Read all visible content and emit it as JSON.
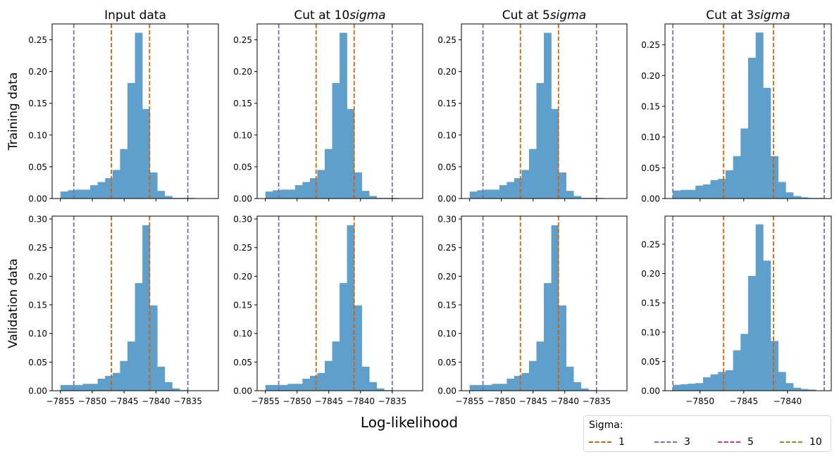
{
  "chart_data": {
    "type": "bar",
    "subtype": "histogram-grid",
    "xlabel": "Log-likelihood",
    "row_labels": [
      "Training data",
      "Validation data"
    ],
    "column_titles": [
      {
        "prefix": "Input data",
        "italic": ""
      },
      {
        "prefix": "Cut at 10",
        "italic": "sigma"
      },
      {
        "prefix": "Cut at 5",
        "italic": "sigma"
      },
      {
        "prefix": "Cut at 3",
        "italic": "sigma"
      }
    ],
    "bar_color": "#5f9fcc",
    "sigma_colors": {
      "1": "#d95f02",
      "3": "#7570b3",
      "5": "#e7298a",
      "10": "#66a61e"
    },
    "legend": {
      "title": "Sigma:",
      "placement": "bottom-right",
      "items": [
        {
          "label": "1",
          "color": "#d95f02"
        },
        {
          "label": "3",
          "color": "#7570b3"
        },
        {
          "label": "5",
          "color": "#e7298a"
        },
        {
          "label": "10",
          "color": "#66a61e"
        }
      ]
    },
    "panels": [
      {
        "row": 0,
        "col": 0,
        "xlim": [
          -7856.3,
          -7830.2
        ],
        "ylim": [
          0,
          0.275
        ],
        "xticks": [
          -7855,
          -7850,
          -7845,
          -7840,
          -7835
        ],
        "show_xticklabels": false,
        "yticks": [
          "0.00",
          "0.05",
          "0.10",
          "0.15",
          "0.20",
          "0.25"
        ],
        "bin_start": -7855.0,
        "bin_width": 1.17,
        "values": [
          0.011,
          0.013,
          0.014,
          0.014,
          0.021,
          0.026,
          0.032,
          0.045,
          0.078,
          0.182,
          0.261,
          0.141,
          0.041,
          0.012,
          0.004,
          0.001,
          0.001,
          0.001
        ],
        "vlines": [
          {
            "x": -7847.0,
            "sigma": "1"
          },
          {
            "x": -7841.0,
            "sigma": "1"
          },
          {
            "x": -7852.9,
            "sigma": "3"
          },
          {
            "x": -7835.0,
            "sigma": "3"
          }
        ]
      },
      {
        "row": 0,
        "col": 1,
        "xlim": [
          -7856.3,
          -7830.2
        ],
        "ylim": [
          0,
          0.275
        ],
        "xticks": [
          -7855,
          -7850,
          -7845,
          -7840,
          -7835
        ],
        "show_xticklabels": false,
        "yticks": [
          "0.00",
          "0.05",
          "0.10",
          "0.15",
          "0.20",
          "0.25"
        ],
        "bin_start": -7855.0,
        "bin_width": 1.17,
        "values": [
          0.011,
          0.013,
          0.014,
          0.014,
          0.021,
          0.026,
          0.032,
          0.045,
          0.078,
          0.182,
          0.261,
          0.141,
          0.041,
          0.012,
          0.004,
          0.001,
          0.001,
          0.001
        ],
        "vlines": [
          {
            "x": -7847.0,
            "sigma": "1"
          },
          {
            "x": -7841.0,
            "sigma": "1"
          },
          {
            "x": -7852.9,
            "sigma": "3"
          },
          {
            "x": -7835.0,
            "sigma": "3"
          }
        ]
      },
      {
        "row": 0,
        "col": 2,
        "xlim": [
          -7856.3,
          -7830.2
        ],
        "ylim": [
          0,
          0.275
        ],
        "xticks": [
          -7855,
          -7850,
          -7845,
          -7840,
          -7835
        ],
        "show_xticklabels": false,
        "yticks": [
          "0.00",
          "0.05",
          "0.10",
          "0.15",
          "0.20",
          "0.25"
        ],
        "bin_start": -7855.0,
        "bin_width": 1.17,
        "values": [
          0.011,
          0.013,
          0.014,
          0.014,
          0.021,
          0.026,
          0.032,
          0.045,
          0.078,
          0.182,
          0.261,
          0.141,
          0.041,
          0.012,
          0.004,
          0.001,
          0.001,
          0.001
        ],
        "vlines": [
          {
            "x": -7847.0,
            "sigma": "1"
          },
          {
            "x": -7841.0,
            "sigma": "1"
          },
          {
            "x": -7852.9,
            "sigma": "3"
          },
          {
            "x": -7835.0,
            "sigma": "3"
          }
        ]
      },
      {
        "row": 0,
        "col": 3,
        "xlim": [
          -7854.0,
          -7835.0
        ],
        "ylim": [
          0,
          0.284
        ],
        "xticks": [
          -7850,
          -7845,
          -7840
        ],
        "show_xticklabels": false,
        "yticks": [
          "0.00",
          "0.05",
          "0.10",
          "0.15",
          "0.20",
          "0.25"
        ],
        "bin_start": -7853.1,
        "bin_width": 0.86,
        "values": [
          0.013,
          0.014,
          0.014,
          0.021,
          0.023,
          0.03,
          0.032,
          0.046,
          0.069,
          0.114,
          0.229,
          0.27,
          0.18,
          0.069,
          0.027,
          0.01,
          0.004,
          0.002,
          0.001,
          0.001
        ],
        "vlines": [
          {
            "x": -7847.3,
            "sigma": "1"
          },
          {
            "x": -7841.6,
            "sigma": "1"
          },
          {
            "x": -7853.1,
            "sigma": "3"
          },
          {
            "x": -7835.8,
            "sigma": "3"
          }
        ]
      },
      {
        "row": 1,
        "col": 0,
        "xlim": [
          -7856.3,
          -7830.2
        ],
        "ylim": [
          0,
          0.305
        ],
        "xticks": [
          -7855,
          -7850,
          -7845,
          -7840,
          -7835
        ],
        "show_xticklabels": true,
        "xticklabels": [
          "−7855",
          "−7850",
          "−7845",
          "−7840",
          "−7835"
        ],
        "yticks": [
          "0.00",
          "0.05",
          "0.10",
          "0.15",
          "0.20",
          "0.25",
          "0.30"
        ],
        "bin_start": -7855.0,
        "bin_width": 1.17,
        "values": [
          0.01,
          0.01,
          0.01,
          0.012,
          0.012,
          0.021,
          0.026,
          0.031,
          0.052,
          0.086,
          0.188,
          0.289,
          0.149,
          0.042,
          0.015,
          0.004,
          0.001
        ],
        "vlines": [
          {
            "x": -7847.0,
            "sigma": "1"
          },
          {
            "x": -7841.0,
            "sigma": "1"
          },
          {
            "x": -7852.9,
            "sigma": "3"
          },
          {
            "x": -7835.0,
            "sigma": "3"
          }
        ]
      },
      {
        "row": 1,
        "col": 1,
        "xlim": [
          -7856.3,
          -7830.2
        ],
        "ylim": [
          0,
          0.305
        ],
        "xticks": [
          -7855,
          -7850,
          -7845,
          -7840,
          -7835
        ],
        "show_xticklabels": true,
        "xticklabels": [
          "−7855",
          "−7850",
          "−7845",
          "−7840",
          "−7835"
        ],
        "yticks": [
          "0.00",
          "0.05",
          "0.10",
          "0.15",
          "0.20",
          "0.25",
          "0.30"
        ],
        "bin_start": -7855.0,
        "bin_width": 1.17,
        "values": [
          0.01,
          0.01,
          0.01,
          0.012,
          0.012,
          0.021,
          0.026,
          0.031,
          0.052,
          0.086,
          0.188,
          0.289,
          0.149,
          0.042,
          0.015,
          0.004,
          0.001
        ],
        "vlines": [
          {
            "x": -7847.0,
            "sigma": "1"
          },
          {
            "x": -7841.0,
            "sigma": "1"
          },
          {
            "x": -7852.9,
            "sigma": "3"
          },
          {
            "x": -7835.0,
            "sigma": "3"
          }
        ]
      },
      {
        "row": 1,
        "col": 2,
        "xlim": [
          -7856.3,
          -7830.2
        ],
        "ylim": [
          0,
          0.305
        ],
        "xticks": [
          -7855,
          -7850,
          -7845,
          -7840,
          -7835
        ],
        "show_xticklabels": true,
        "xticklabels": [
          "−7855",
          "−7850",
          "−7845",
          "−7840",
          "−7835"
        ],
        "yticks": [
          "0.00",
          "0.05",
          "0.10",
          "0.15",
          "0.20",
          "0.25",
          "0.30"
        ],
        "bin_start": -7855.0,
        "bin_width": 1.17,
        "values": [
          0.01,
          0.01,
          0.01,
          0.012,
          0.012,
          0.021,
          0.026,
          0.031,
          0.052,
          0.086,
          0.188,
          0.289,
          0.149,
          0.042,
          0.015,
          0.004,
          0.001
        ],
        "vlines": [
          {
            "x": -7847.0,
            "sigma": "1"
          },
          {
            "x": -7841.0,
            "sigma": "1"
          },
          {
            "x": -7852.9,
            "sigma": "3"
          },
          {
            "x": -7835.0,
            "sigma": "3"
          }
        ]
      },
      {
        "row": 1,
        "col": 3,
        "xlim": [
          -7854.0,
          -7835.0
        ],
        "ylim": [
          0,
          0.298
        ],
        "xticks": [
          -7850,
          -7845,
          -7840
        ],
        "show_xticklabels": true,
        "xticklabels": [
          "−7850",
          "−7845",
          "−7840"
        ],
        "yticks": [
          "0.00",
          "0.05",
          "0.10",
          "0.15",
          "0.20",
          "0.25"
        ],
        "bin_start": -7853.1,
        "bin_width": 0.86,
        "values": [
          0.01,
          0.011,
          0.012,
          0.013,
          0.023,
          0.028,
          0.032,
          0.035,
          0.069,
          0.097,
          0.196,
          0.284,
          0.222,
          0.085,
          0.032,
          0.013,
          0.005,
          0.003,
          0.002
        ],
        "vlines": [
          {
            "x": -7847.3,
            "sigma": "1"
          },
          {
            "x": -7841.6,
            "sigma": "1"
          },
          {
            "x": -7853.1,
            "sigma": "3"
          },
          {
            "x": -7835.8,
            "sigma": "3"
          }
        ]
      }
    ]
  }
}
